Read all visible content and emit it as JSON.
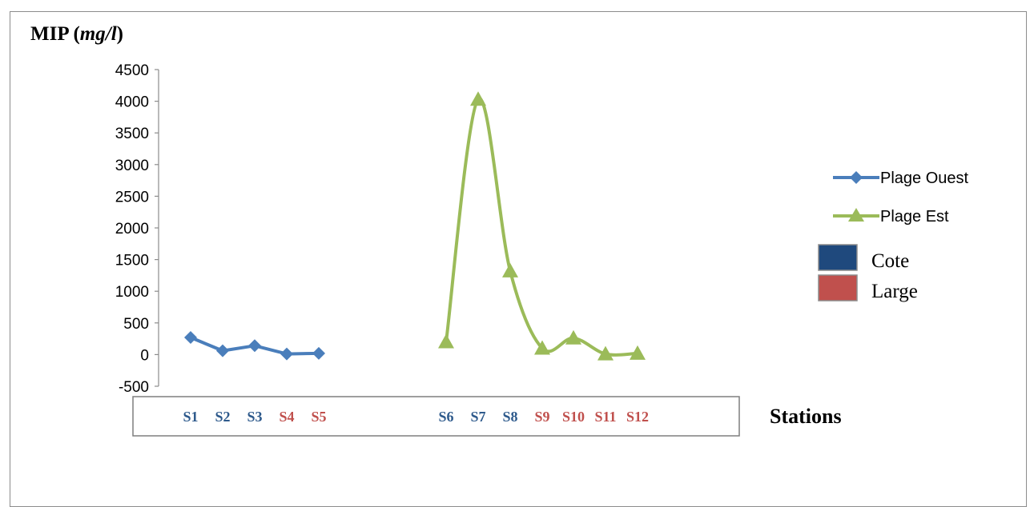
{
  "chart_data": {
    "type": "line",
    "ylabel": {
      "main": "MIP",
      "unit": "mg/l"
    },
    "xlabel": "Stations",
    "ylim": [
      -500,
      4500
    ],
    "yticks": [
      4500,
      4000,
      3500,
      3000,
      2500,
      2000,
      1500,
      1000,
      500,
      0,
      -500
    ],
    "grid": false,
    "legend_position": "right",
    "series": [
      {
        "name": "Plage Ouest",
        "color": "#4a7ebb",
        "marker": "diamond",
        "points": [
          {
            "x": "S1",
            "y": 270
          },
          {
            "x": "S2",
            "y": 60
          },
          {
            "x": "S3",
            "y": 140
          },
          {
            "x": "S4",
            "y": 10
          },
          {
            "x": "S5",
            "y": 20
          }
        ]
      },
      {
        "name": "Plage Est",
        "color": "#9bbb59",
        "marker": "triangle",
        "smooth": true,
        "points": [
          {
            "x": "S6",
            "y": 200
          },
          {
            "x": "S7",
            "y": 4030
          },
          {
            "x": "S8",
            "y": 1320
          },
          {
            "x": "S9",
            "y": 100
          },
          {
            "x": "S10",
            "y": 260
          },
          {
            "x": "S11",
            "y": 10
          },
          {
            "x": "S12",
            "y": 20
          }
        ]
      }
    ],
    "zone_legend": [
      {
        "label": "Cote",
        "color": "#1f497d"
      },
      {
        "label": "Large",
        "color": "#c0504d"
      }
    ],
    "station_labels": [
      {
        "label": "S1",
        "zone": "Cote"
      },
      {
        "label": "S2",
        "zone": "Cote"
      },
      {
        "label": "S3",
        "zone": "Cote"
      },
      {
        "label": "S4",
        "zone": "Large"
      },
      {
        "label": "S5",
        "zone": "Large"
      },
      {
        "label": "S6",
        "zone": "Cote"
      },
      {
        "label": "S7",
        "zone": "Cote"
      },
      {
        "label": "S8",
        "zone": "Cote"
      },
      {
        "label": "S9",
        "zone": "Large"
      },
      {
        "label": "S10",
        "zone": "Large"
      },
      {
        "label": "S11",
        "zone": "Large"
      },
      {
        "label": "S12",
        "zone": "Large"
      }
    ]
  }
}
